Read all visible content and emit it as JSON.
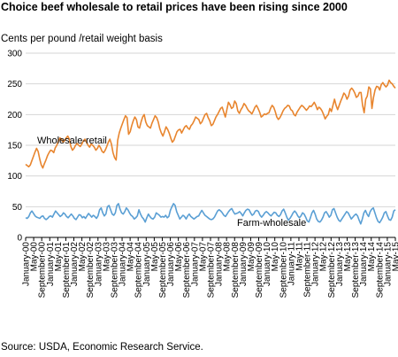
{
  "title": "Choice beef wholesale to retail prices have been rising since 2000",
  "source": "Source: USDA, Economic Research Service.",
  "colors": {
    "wholesale_retail": "#E8852E",
    "farm_wholesale": "#5A9FD4",
    "axis": "#000000",
    "grid": "#D6D6D6"
  },
  "chart_data": {
    "type": "line",
    "ylabel": "Cents per pound /retail weight basis",
    "xlabel": "",
    "ylim": [
      0,
      300
    ],
    "yticks": [
      0,
      50,
      100,
      150,
      200,
      250,
      300
    ],
    "grid": true,
    "x_ticks": [
      "January-00",
      "May-00",
      "September-00",
      "January-01",
      "May-01",
      "September-01",
      "January-02",
      "May-02",
      "September-02",
      "January-03",
      "May-03",
      "September-03",
      "January-04",
      "May-04",
      "September-04",
      "January-05",
      "May-05",
      "September-05",
      "January-06",
      "May-06",
      "September-06",
      "January-07",
      "May-07",
      "September-07",
      "January-08",
      "May-08",
      "September-08",
      "January-09",
      "May-09",
      "September-09",
      "January-10",
      "May-10",
      "September-10",
      "January-11",
      "May-11",
      "September-11",
      "January-12",
      "May-12",
      "September-12",
      "January-13",
      "May-13",
      "September-13",
      "January-14",
      "May-14",
      "September-14",
      "January-15",
      "May-15"
    ],
    "x_start": "January-00",
    "series": [
      {
        "name": "Wholesale-retail",
        "values": [
          119,
          117,
          115,
          118,
          125,
          132,
          139,
          145,
          140,
          128,
          118,
          113,
          120,
          126,
          133,
          138,
          142,
          141,
          138,
          146,
          150,
          157,
          162,
          160,
          155,
          158,
          162,
          165,
          160,
          148,
          142,
          145,
          150,
          153,
          150,
          148,
          152,
          157,
          160,
          155,
          150,
          147,
          152,
          150,
          147,
          142,
          145,
          150,
          146,
          140,
          138,
          142,
          148,
          155,
          160,
          152,
          138,
          130,
          126,
          158,
          170,
          178,
          185,
          192,
          198,
          195,
          168,
          172,
          182,
          190,
          196,
          192,
          180,
          178,
          188,
          196,
          200,
          188,
          182,
          180,
          178,
          186,
          192,
          198,
          195,
          188,
          177,
          170,
          165,
          172,
          180,
          176,
          170,
          162,
          155,
          158,
          165,
          172,
          175,
          176,
          170,
          175,
          180,
          182,
          178,
          176,
          182,
          185,
          190,
          196,
          194,
          192,
          185,
          188,
          194,
          200,
          202,
          195,
          190,
          182,
          184,
          190,
          196,
          200,
          205,
          210,
          212,
          204,
          196,
          208,
          220,
          216,
          210,
          212,
          222,
          218,
          206,
          202,
          208,
          212,
          218,
          215,
          210,
          206,
          204,
          201,
          206,
          212,
          215,
          210,
          204,
          196,
          198,
          201,
          200,
          202,
          203,
          210,
          215,
          212,
          205,
          196,
          192,
          195,
          200,
          206,
          210,
          212,
          215,
          214,
          208,
          206,
          200,
          198,
          204,
          208,
          212,
          215,
          213,
          210,
          207,
          210,
          214,
          213,
          216,
          220,
          215,
          208,
          212,
          210,
          206,
          200,
          193,
          197,
          200,
          210,
          205,
          215,
          225,
          215,
          208,
          215,
          222,
          228,
          235,
          232,
          225,
          230,
          240,
          243,
          240,
          235,
          228,
          230,
          236,
          236,
          215,
          203,
          225,
          230,
          245,
          242,
          210,
          228,
          240,
          246,
          245,
          240,
          249,
          252,
          248,
          245,
          248,
          256,
          252,
          250,
          246,
          243
        ]
      },
      {
        "name": "Farm-wholesale",
        "values": [
          32,
          31,
          34,
          40,
          43,
          39,
          35,
          33,
          32,
          31,
          34,
          35,
          31,
          29,
          31,
          34,
          35,
          33,
          38,
          43,
          40,
          37,
          34,
          36,
          40,
          38,
          34,
          32,
          35,
          38,
          35,
          31,
          29,
          33,
          37,
          36,
          32,
          34,
          31,
          35,
          39,
          36,
          33,
          36,
          34,
          31,
          35,
          45,
          48,
          40,
          35,
          38,
          50,
          52,
          45,
          38,
          36,
          40,
          52,
          55,
          46,
          40,
          38,
          42,
          48,
          45,
          40,
          36,
          34,
          30,
          32,
          35,
          45,
          38,
          33,
          30,
          25,
          32,
          38,
          34,
          31,
          30,
          33,
          40,
          38,
          36,
          33,
          34,
          33,
          36,
          32,
          34,
          44,
          50,
          55,
          52,
          42,
          36,
          30,
          33,
          36,
          34,
          30,
          35,
          38,
          34,
          32,
          30,
          32,
          34,
          35,
          40,
          44,
          40,
          36,
          34,
          32,
          30,
          29,
          30,
          33,
          38,
          43,
          45,
          43,
          40,
          36,
          34,
          38,
          42,
          45,
          47,
          42,
          38,
          39,
          40,
          42,
          39,
          35,
          40,
          44,
          46,
          45,
          40,
          36,
          38,
          43,
          44,
          42,
          36,
          33,
          36,
          40,
          42,
          40,
          37,
          35,
          38,
          41,
          40,
          36,
          34,
          37,
          43,
          46,
          40,
          33,
          28,
          31,
          35,
          40,
          43,
          40,
          35,
          32,
          35,
          40,
          38,
          33,
          27,
          25,
          32,
          40,
          44,
          38,
          30,
          26,
          25,
          28,
          33,
          40,
          42,
          38,
          33,
          36,
          45,
          47,
          40,
          33,
          28,
          26,
          30,
          34,
          38,
          42,
          40,
          35,
          30,
          33,
          36,
          38,
          35,
          28,
          22,
          30,
          40,
          44,
          38,
          34,
          42,
          46,
          48,
          40,
          32,
          26,
          24,
          28,
          33,
          40,
          42,
          35,
          29,
          28,
          33,
          43,
          45
        ]
      }
    ],
    "annotations": [
      {
        "text": "Wholesale-retail",
        "series": "Wholesale-retail"
      },
      {
        "text": "Farm-wholesale",
        "series": "Farm-wholesale"
      }
    ]
  }
}
